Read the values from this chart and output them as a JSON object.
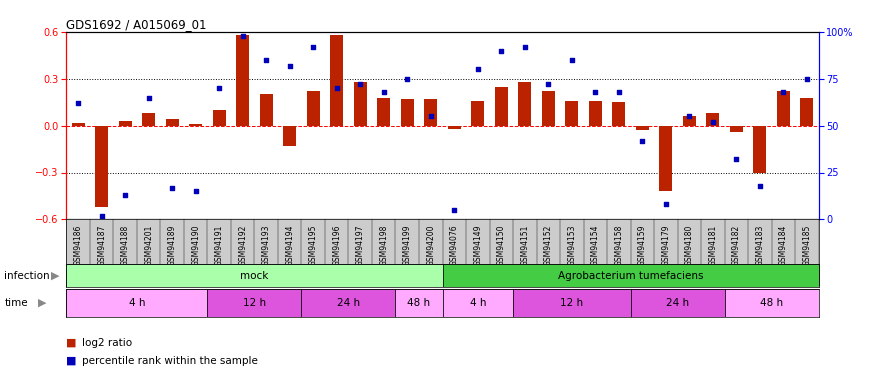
{
  "title": "GDS1692 / A015069_01",
  "samples": [
    "GSM94186",
    "GSM94187",
    "GSM94188",
    "GSM94201",
    "GSM94189",
    "GSM94190",
    "GSM94191",
    "GSM94192",
    "GSM94193",
    "GSM94194",
    "GSM94195",
    "GSM94196",
    "GSM94197",
    "GSM94198",
    "GSM94199",
    "GSM94200",
    "GSM94076",
    "GSM94149",
    "GSM94150",
    "GSM94151",
    "GSM94152",
    "GSM94153",
    "GSM94154",
    "GSM94158",
    "GSM94159",
    "GSM94179",
    "GSM94180",
    "GSM94181",
    "GSM94182",
    "GSM94183",
    "GSM94184",
    "GSM94185"
  ],
  "log2_ratio": [
    0.02,
    -0.52,
    0.03,
    0.08,
    0.04,
    0.01,
    0.1,
    0.58,
    0.2,
    -0.13,
    0.22,
    0.58,
    0.28,
    0.18,
    0.17,
    0.17,
    -0.02,
    0.16,
    0.25,
    0.28,
    0.22,
    0.16,
    0.16,
    0.15,
    -0.03,
    -0.42,
    0.06,
    0.08,
    -0.04,
    -0.3,
    0.22,
    0.18
  ],
  "percentile": [
    62,
    2,
    13,
    65,
    17,
    15,
    70,
    98,
    85,
    82,
    92,
    70,
    72,
    68,
    75,
    55,
    5,
    80,
    90,
    92,
    72,
    85,
    68,
    68,
    42,
    8,
    55,
    52,
    32,
    18,
    68,
    75
  ],
  "infection_groups": [
    {
      "label": "mock",
      "start": 0,
      "end": 16,
      "color": "#aaffaa"
    },
    {
      "label": "Agrobacterium tumefaciens",
      "start": 16,
      "end": 32,
      "color": "#44cc44"
    }
  ],
  "time_groups": [
    {
      "label": "4 h",
      "start": 0,
      "end": 6,
      "color": "#ffaaff"
    },
    {
      "label": "12 h",
      "start": 6,
      "end": 10,
      "color": "#dd55dd"
    },
    {
      "label": "24 h",
      "start": 10,
      "end": 14,
      "color": "#dd55dd"
    },
    {
      "label": "48 h",
      "start": 14,
      "end": 16,
      "color": "#ffaaff"
    },
    {
      "label": "4 h",
      "start": 16,
      "end": 19,
      "color": "#ffaaff"
    },
    {
      "label": "12 h",
      "start": 19,
      "end": 24,
      "color": "#dd55dd"
    },
    {
      "label": "24 h",
      "start": 24,
      "end": 28,
      "color": "#dd55dd"
    },
    {
      "label": "48 h",
      "start": 28,
      "end": 32,
      "color": "#ffaaff"
    }
  ],
  "bar_color": "#bb2200",
  "dot_color": "#0000bb",
  "ylim_left": [
    -0.6,
    0.6
  ],
  "ylim_right": [
    0,
    100
  ],
  "yticks_left": [
    -0.6,
    -0.3,
    0.0,
    0.3,
    0.6
  ],
  "yticks_right": [
    0,
    25,
    50,
    75,
    100
  ],
  "ytick_right_labels": [
    "0",
    "25",
    "50",
    "75",
    "100%"
  ],
  "hlines_dotted": [
    0.3,
    -0.3
  ],
  "hline_dashed": 0.0,
  "bar_width": 0.55,
  "bg_color": "#ffffff",
  "label_log2": "log2 ratio",
  "label_pct": "percentile rank within the sample",
  "infection_label": "infection",
  "time_label": "time"
}
